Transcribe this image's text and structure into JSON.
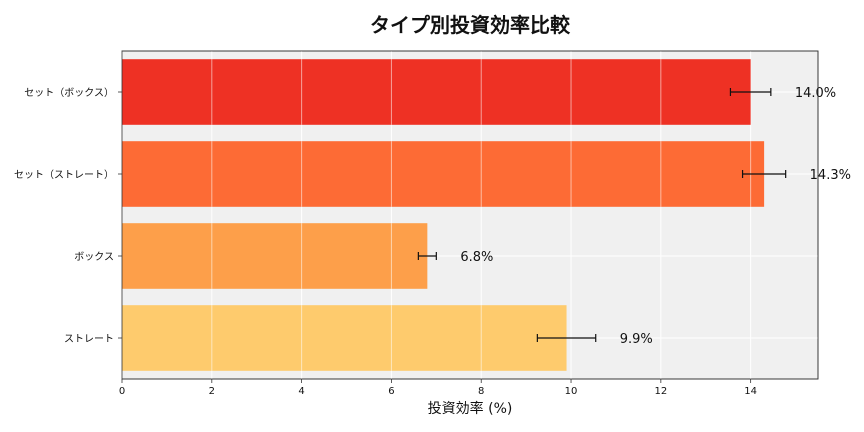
{
  "chart_data": {
    "type": "bar",
    "orientation": "horizontal",
    "title": "タイプ別投資効率比較",
    "xlabel": "投資効率 (%)",
    "ylabel": "",
    "xlim": [
      0,
      15.5
    ],
    "xticks": [
      "0",
      "2",
      "4",
      "6",
      "8",
      "10",
      "12",
      "14"
    ],
    "grid": true,
    "categories": [
      "セット（ボックス）",
      "セット（ストレート）",
      "ボックス",
      "ストレート"
    ],
    "values": [
      14.0,
      14.3,
      6.8,
      9.9
    ],
    "errors": [
      0.45,
      0.48,
      0.2,
      0.65
    ],
    "value_labels": [
      "14.0%",
      "14.3%",
      "6.8%",
      "9.9%"
    ],
    "colors": [
      "#ee3124",
      "#fd6b35",
      "#fd9f4a",
      "#fecb6d"
    ],
    "plot_background": "#f0f0f0"
  }
}
